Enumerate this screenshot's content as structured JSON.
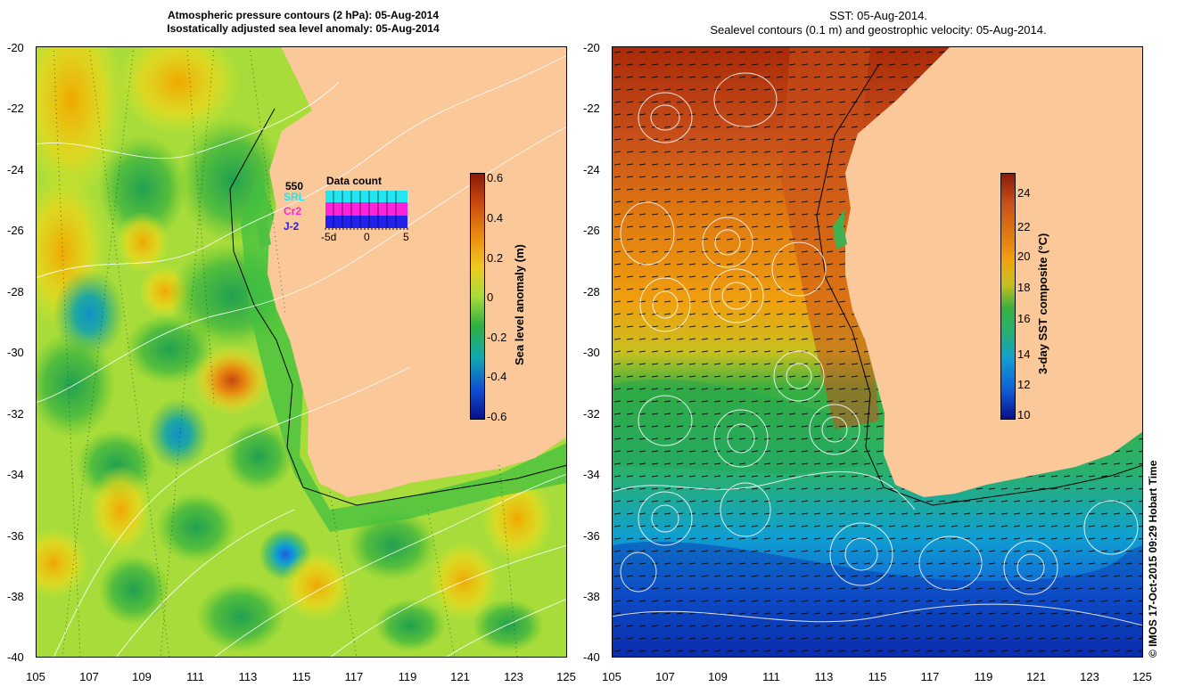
{
  "left_panel": {
    "title_line1": "Atmospheric pressure contours (2 hPa): 05-Aug-2014",
    "title_line2": "Isostatically adjusted sea level anomaly: 05-Aug-2014",
    "colorbar_label": "Sea level anomaly (m)",
    "colorbar_ticks": [
      "0.6",
      "0.4",
      "0.2",
      "0",
      "-0.2",
      "-0.4",
      "-0.6"
    ],
    "inset": {
      "title": "Data count",
      "max_label": "550",
      "series": [
        "SRL",
        "Cr2",
        "J-2"
      ],
      "x_ticks": [
        "-5d",
        "0",
        "5"
      ],
      "colors": {
        "SRL": "#22e6f0",
        "Cr2": "#ff22dd",
        "J-2": "#2222ee"
      }
    }
  },
  "right_panel": {
    "title_line1": "SST: 05-Aug-2014.",
    "title_line2": "Sealevel contours (0.1 m) and geostrophic velocity: 05-Aug-2014.",
    "colorbar_label": "3-day SST composite (°C)",
    "colorbar_ticks": [
      "24",
      "22",
      "20",
      "18",
      "16",
      "14",
      "12",
      "10"
    ]
  },
  "axes": {
    "lat_ticks": [
      "-20",
      "-22",
      "-24",
      "-26",
      "-28",
      "-30",
      "-32",
      "-34",
      "-36",
      "-38",
      "-40"
    ],
    "lon_ticks": [
      "105",
      "107",
      "109",
      "111",
      "113",
      "115",
      "117",
      "119",
      "121",
      "123",
      "125"
    ]
  },
  "credit": "© IMOS 17-Oct-2015 09:29 Hobart Time",
  "colors": {
    "land": "#fbc89a",
    "frame": "#000000"
  }
}
